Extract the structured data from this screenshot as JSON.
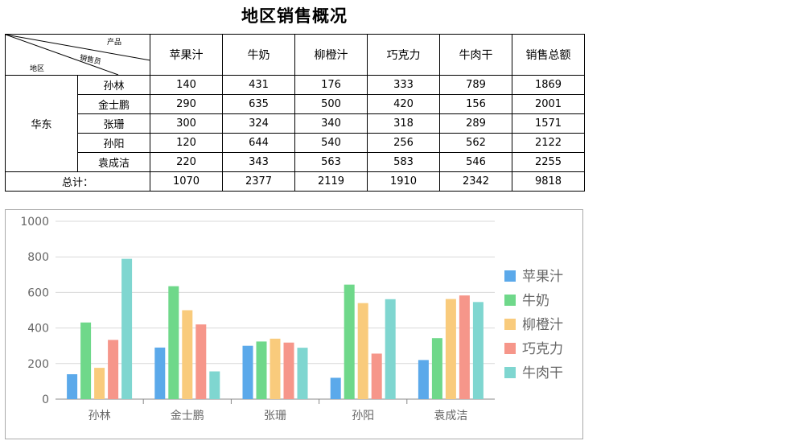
{
  "title": "地区销售概况",
  "table": {
    "corner": {
      "top_right": "产品",
      "middle": "销售员",
      "bottom_left": "地区"
    },
    "products": [
      "苹果汁",
      "牛奶",
      "柳橙汁",
      "巧克力",
      "牛肉干"
    ],
    "total_header": "销售总额",
    "region": "华东",
    "rows": [
      {
        "name": "孙林",
        "values": [
          "140",
          "431",
          "176",
          "333",
          "789"
        ],
        "total": "1869"
      },
      {
        "name": "金士鹏",
        "values": [
          "290",
          "635",
          "500",
          "420",
          "156"
        ],
        "total": "2001"
      },
      {
        "name": "张珊",
        "values": [
          "300",
          "324",
          "340",
          "318",
          "289"
        ],
        "total": "1571"
      },
      {
        "name": "孙阳",
        "values": [
          "120",
          "644",
          "540",
          "256",
          "562"
        ],
        "total": "2122"
      },
      {
        "name": "袁成洁",
        "values": [
          "220",
          "343",
          "563",
          "583",
          "546"
        ],
        "total": "2255"
      }
    ],
    "footer": {
      "label": "总计：",
      "values": [
        "1070",
        "2377",
        "2119",
        "1910",
        "2342"
      ],
      "total": "9818"
    }
  },
  "chart_data": {
    "type": "bar",
    "categories": [
      "孙林",
      "金士鹏",
      "张珊",
      "孙阳",
      "袁成洁"
    ],
    "series": [
      {
        "name": "苹果汁",
        "color": "#5ba9ea",
        "values": [
          140,
          290,
          300,
          120,
          220
        ]
      },
      {
        "name": "牛奶",
        "color": "#6fd88a",
        "values": [
          431,
          635,
          324,
          644,
          343
        ]
      },
      {
        "name": "柳橙汁",
        "color": "#f9cb7c",
        "values": [
          176,
          500,
          340,
          540,
          563
        ]
      },
      {
        "name": "巧克力",
        "color": "#f6968a",
        "values": [
          333,
          420,
          318,
          256,
          583
        ]
      },
      {
        "name": "牛肉干",
        "color": "#7fd6d0",
        "values": [
          789,
          156,
          289,
          562,
          546
        ]
      }
    ],
    "yticks": [
      "0",
      "200",
      "400",
      "600",
      "800",
      "1000"
    ],
    "ylim": [
      0,
      1000
    ],
    "grid": true,
    "legend": "right"
  }
}
